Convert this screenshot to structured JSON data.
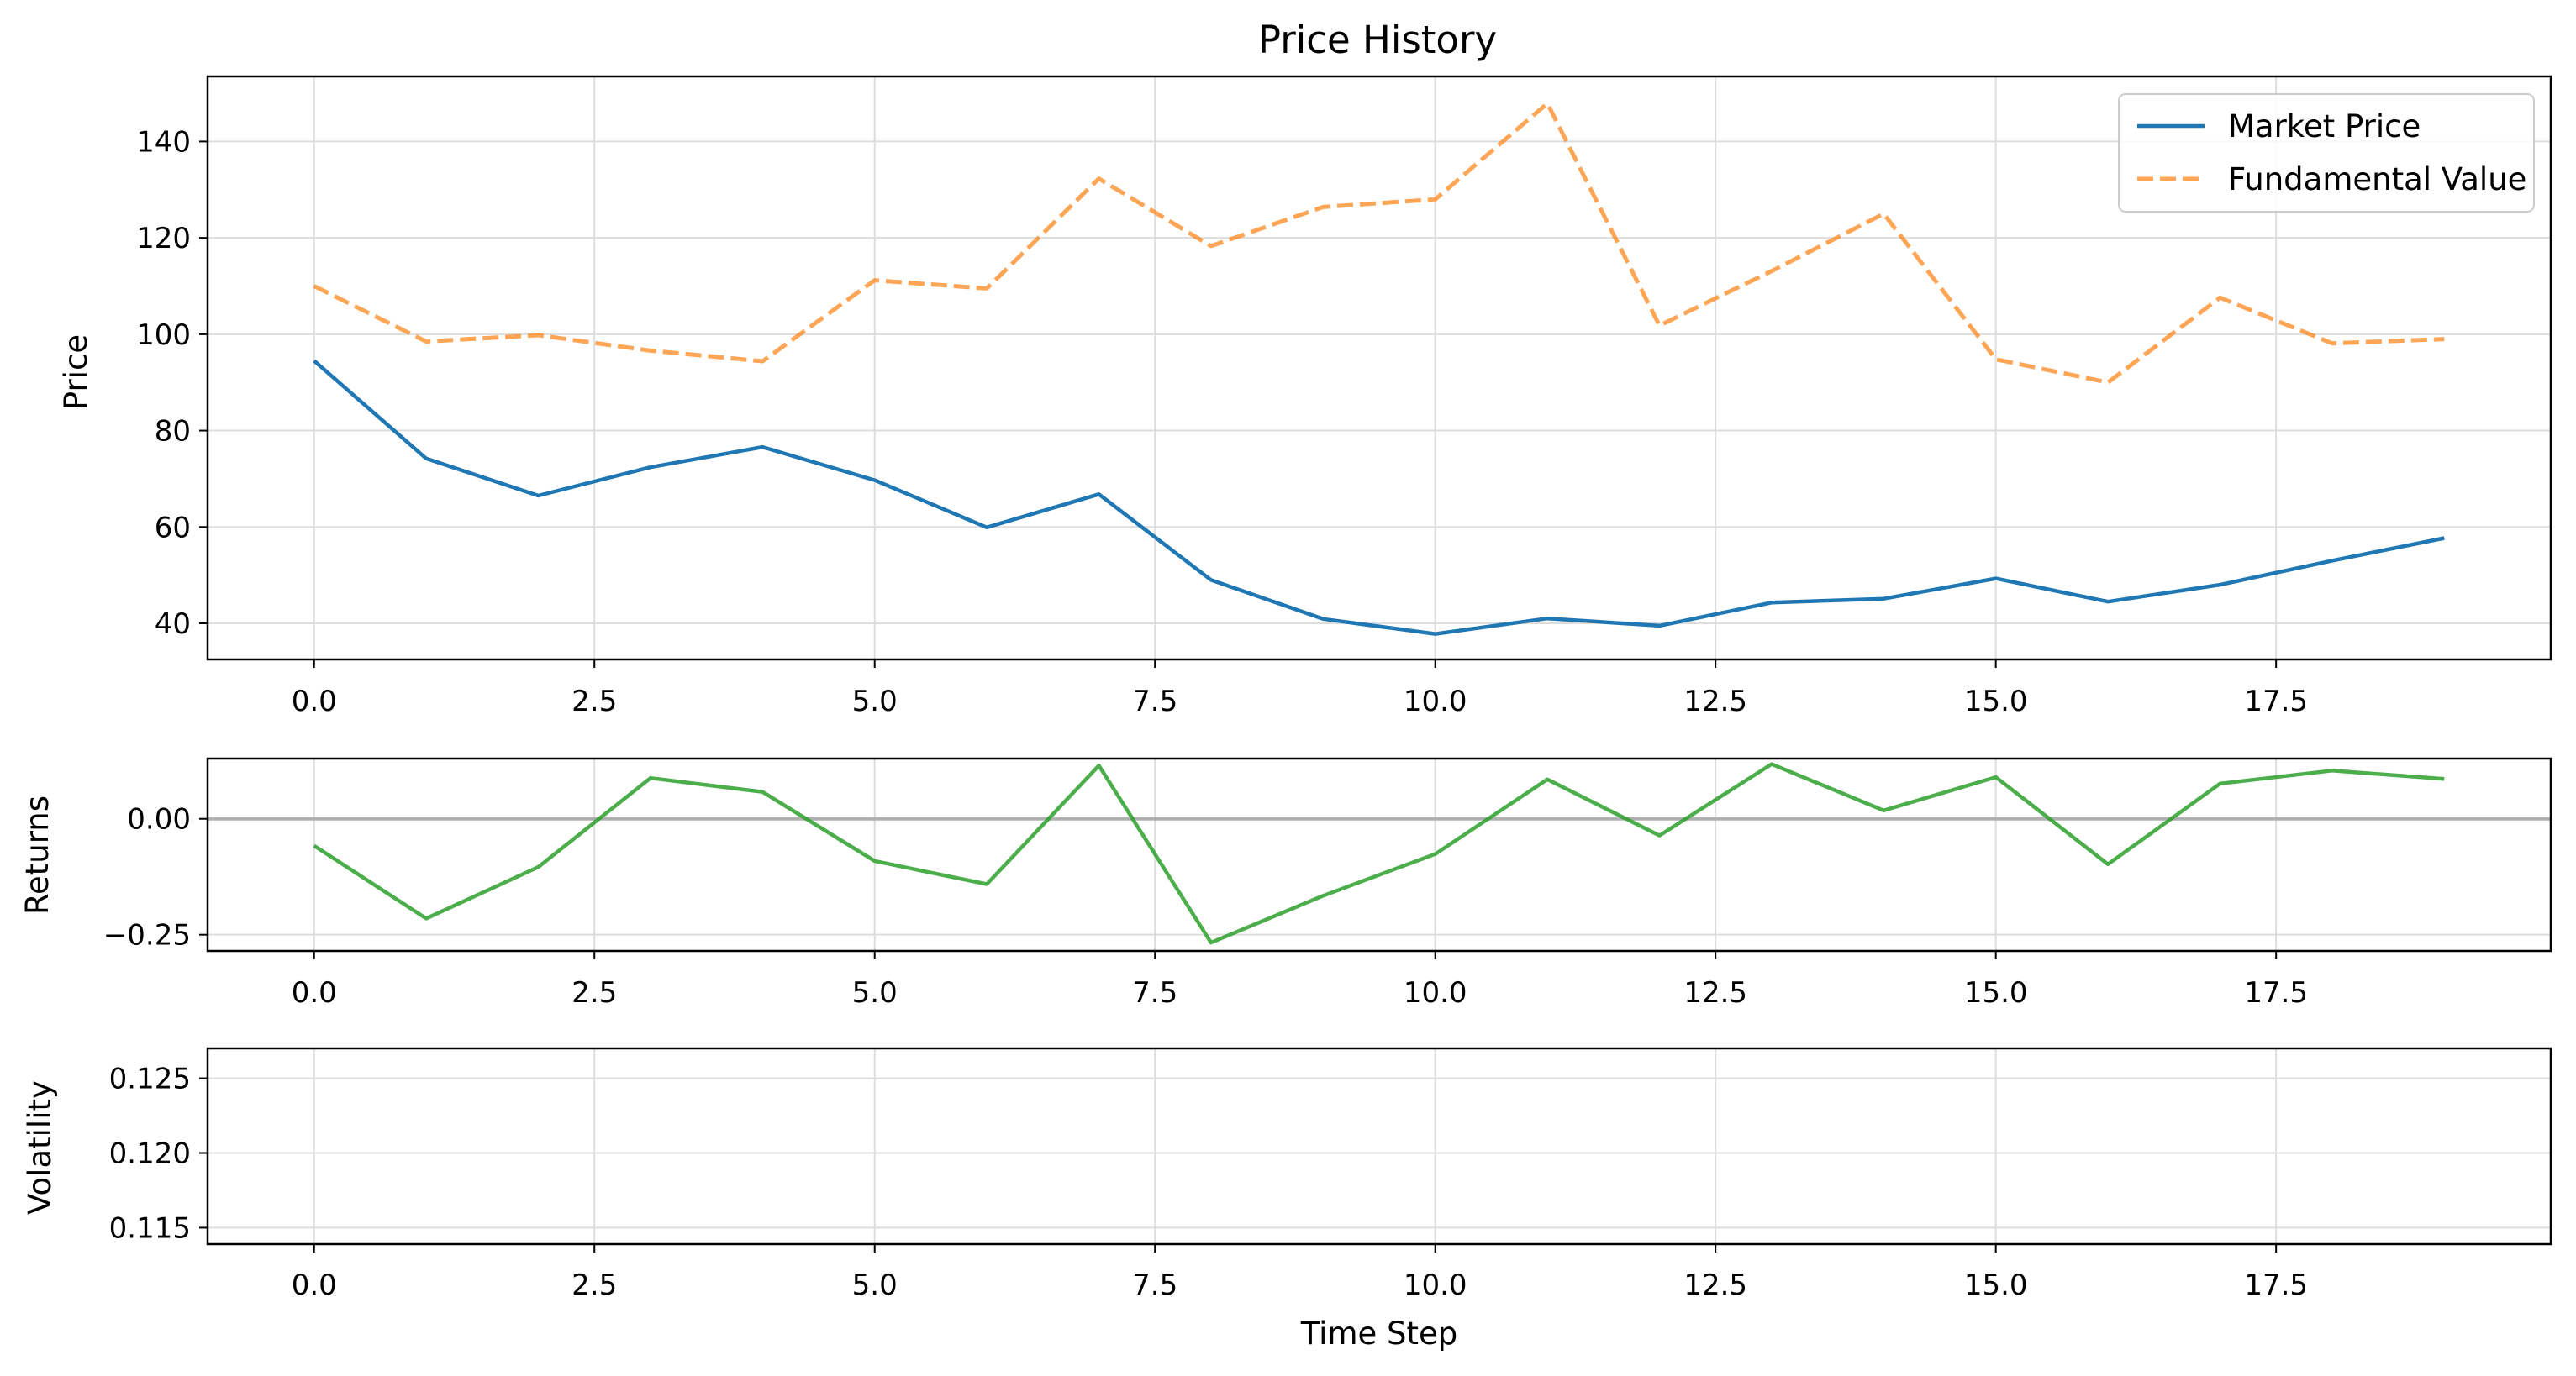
{
  "figure_title": "Price History",
  "colors": {
    "market_price": "#1f77b4",
    "fundamental_value": "#ff7f0e",
    "returns": "#2ca02c",
    "zero_line": "#b0b0b0",
    "grid": "#dddddd"
  },
  "chart_data": [
    {
      "type": "line",
      "title": "Price History",
      "xlabel": "",
      "ylabel": "Price",
      "xlim": [
        -0.95,
        19.95
      ],
      "ylim": [
        32.5,
        153.5
      ],
      "xticks": [
        0,
        2.5,
        5,
        7.5,
        10,
        12.5,
        15,
        17.5
      ],
      "xtick_labels": [
        "0.0",
        "2.5",
        "5.0",
        "7.5",
        "10.0",
        "12.5",
        "15.0",
        "17.5"
      ],
      "yticks": [
        40,
        60,
        80,
        100,
        120,
        140
      ],
      "ytick_labels": [
        "40",
        "60",
        "80",
        "100",
        "120",
        "140"
      ],
      "grid": true,
      "legend_position": "top-right",
      "x": [
        0,
        1,
        2,
        3,
        4,
        5,
        6,
        7,
        8,
        9,
        10,
        11,
        12,
        13,
        14,
        15,
        16,
        17,
        18,
        19
      ],
      "series": [
        {
          "name": "Market Price",
          "style": "solid",
          "color_key": "market_price",
          "values": [
            94.5,
            74.2,
            66.5,
            72.4,
            76.6,
            69.7,
            59.9,
            66.8,
            49.0,
            40.9,
            37.8,
            41.0,
            39.5,
            44.3,
            45.1,
            49.3,
            44.5,
            48.0,
            53.0,
            57.7
          ]
        },
        {
          "name": "Fundamental Value",
          "style": "dashed",
          "color_key": "fundamental_value",
          "values": [
            110.0,
            98.5,
            99.8,
            96.6,
            94.4,
            111.2,
            109.5,
            132.3,
            118.3,
            126.4,
            128.0,
            147.9,
            101.8,
            113.1,
            125.0,
            94.8,
            90.0,
            107.6,
            98.1,
            99.0
          ]
        }
      ]
    },
    {
      "type": "line",
      "title": "",
      "xlabel": "",
      "ylabel": "Returns",
      "xlim": [
        -0.95,
        19.95
      ],
      "ylim": [
        -0.285,
        0.13
      ],
      "xticks": [
        0,
        2.5,
        5,
        7.5,
        10,
        12.5,
        15,
        17.5
      ],
      "xtick_labels": [
        "0.0",
        "2.5",
        "5.0",
        "7.5",
        "10.0",
        "12.5",
        "15.0",
        "17.5"
      ],
      "yticks": [
        -0.25,
        0
      ],
      "ytick_labels": [
        "−0.25",
        "0.00"
      ],
      "grid": true,
      "reference_line_y": 0,
      "x": [
        0,
        1,
        2,
        3,
        4,
        5,
        6,
        7,
        8,
        9,
        10,
        11,
        12,
        13,
        14,
        15,
        16,
        17,
        18,
        19
      ],
      "series": [
        {
          "name": "Returns",
          "style": "solid",
          "color_key": "returns",
          "values": [
            -0.058,
            -0.215,
            -0.104,
            0.088,
            0.058,
            -0.091,
            -0.141,
            0.115,
            -0.267,
            -0.166,
            -0.076,
            0.085,
            -0.036,
            0.118,
            0.018,
            0.09,
            -0.098,
            0.076,
            0.104,
            0.086
          ]
        }
      ]
    },
    {
      "type": "line",
      "title": "",
      "xlabel": "Time Step",
      "ylabel": "Volatility",
      "xlim": [
        -0.95,
        19.95
      ],
      "ylim": [
        0.1139,
        0.127
      ],
      "xticks": [
        0,
        2.5,
        5,
        7.5,
        10,
        12.5,
        15,
        17.5
      ],
      "xtick_labels": [
        "0.0",
        "2.5",
        "5.0",
        "7.5",
        "10.0",
        "12.5",
        "15.0",
        "17.5"
      ],
      "yticks": [
        0.115,
        0.12,
        0.125
      ],
      "ytick_labels": [
        "0.115",
        "0.120",
        "0.125"
      ],
      "grid": true,
      "series": []
    }
  ]
}
